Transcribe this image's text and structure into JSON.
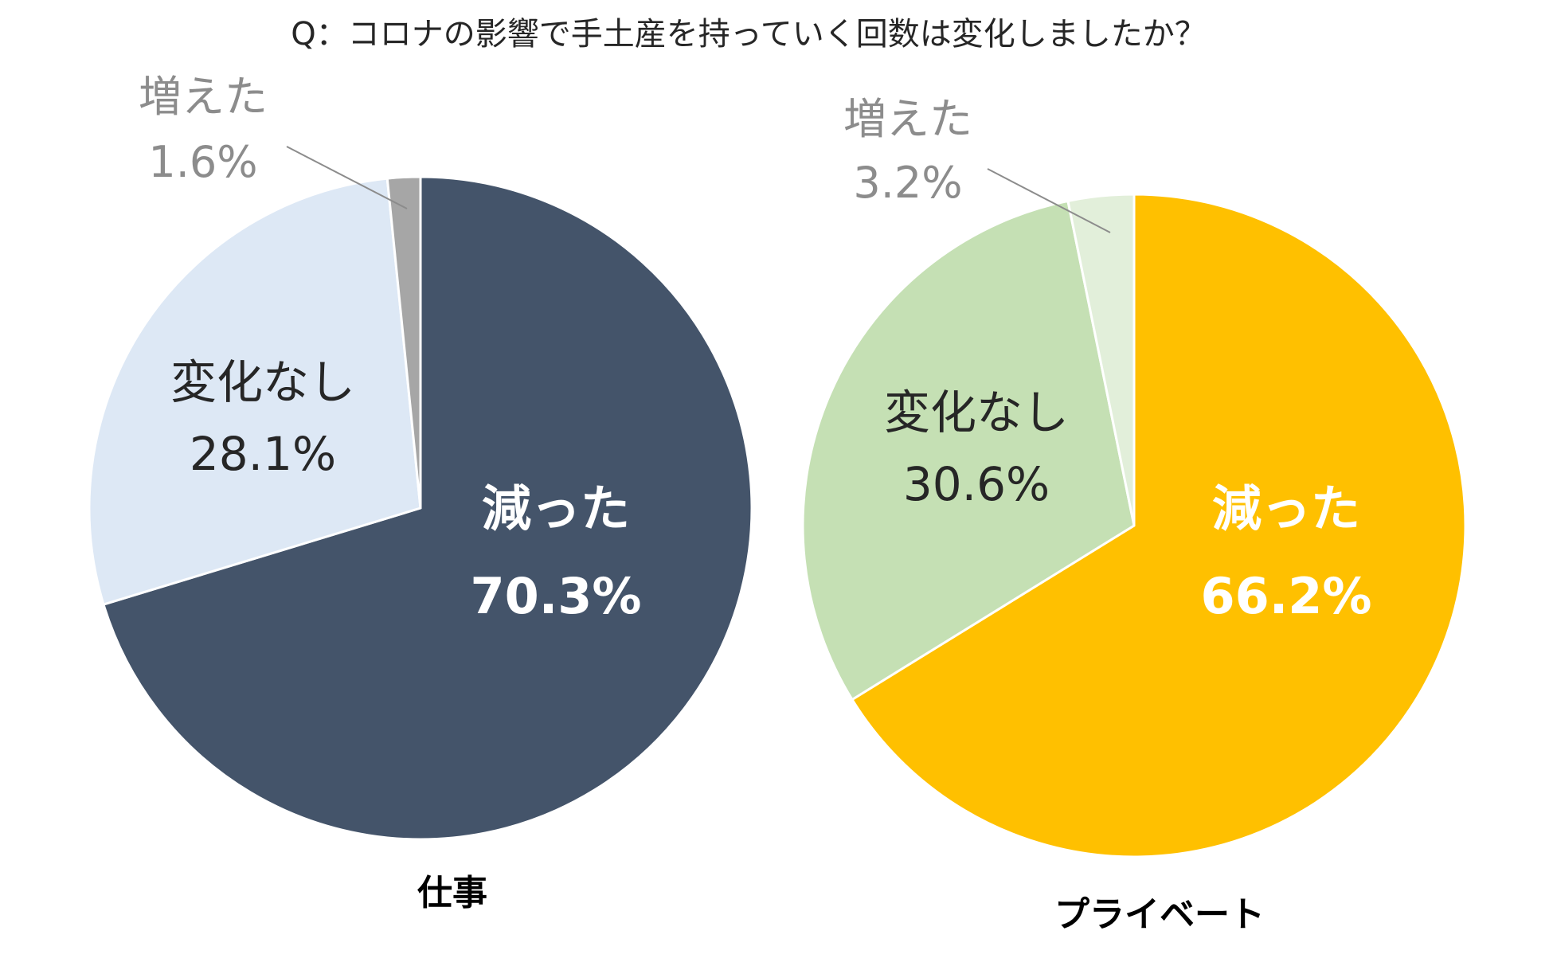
{
  "title": "Q：コロナの影響で手土産を持っていく回数は変化しましたか？",
  "chart_data": [
    {
      "type": "pie",
      "name": "仕事",
      "slices": [
        {
          "label": "減った",
          "value": 70.3,
          "value_label": "70.3%",
          "color": "#44546a",
          "text_color": "#ffffff"
        },
        {
          "label": "変化なし",
          "value": 28.1,
          "value_label": "28.1%",
          "color": "#dde8f5",
          "text_color": "#262626"
        },
        {
          "label": "増えた",
          "value": 1.6,
          "value_label": "1.6%",
          "color": "#a6a6a6",
          "text_color": "#8c8c8c"
        }
      ]
    },
    {
      "type": "pie",
      "name": "プライベート",
      "slices": [
        {
          "label": "減った",
          "value": 66.2,
          "value_label": "66.2%",
          "color": "#ffc000",
          "text_color": "#ffffff"
        },
        {
          "label": "変化なし",
          "value": 30.6,
          "value_label": "30.6%",
          "color": "#c5e0b4",
          "text_color": "#262626"
        },
        {
          "label": "増えた",
          "value": 3.2,
          "value_label": "3.2%",
          "color": "#e2efda",
          "text_color": "#8c8c8c"
        }
      ]
    }
  ]
}
